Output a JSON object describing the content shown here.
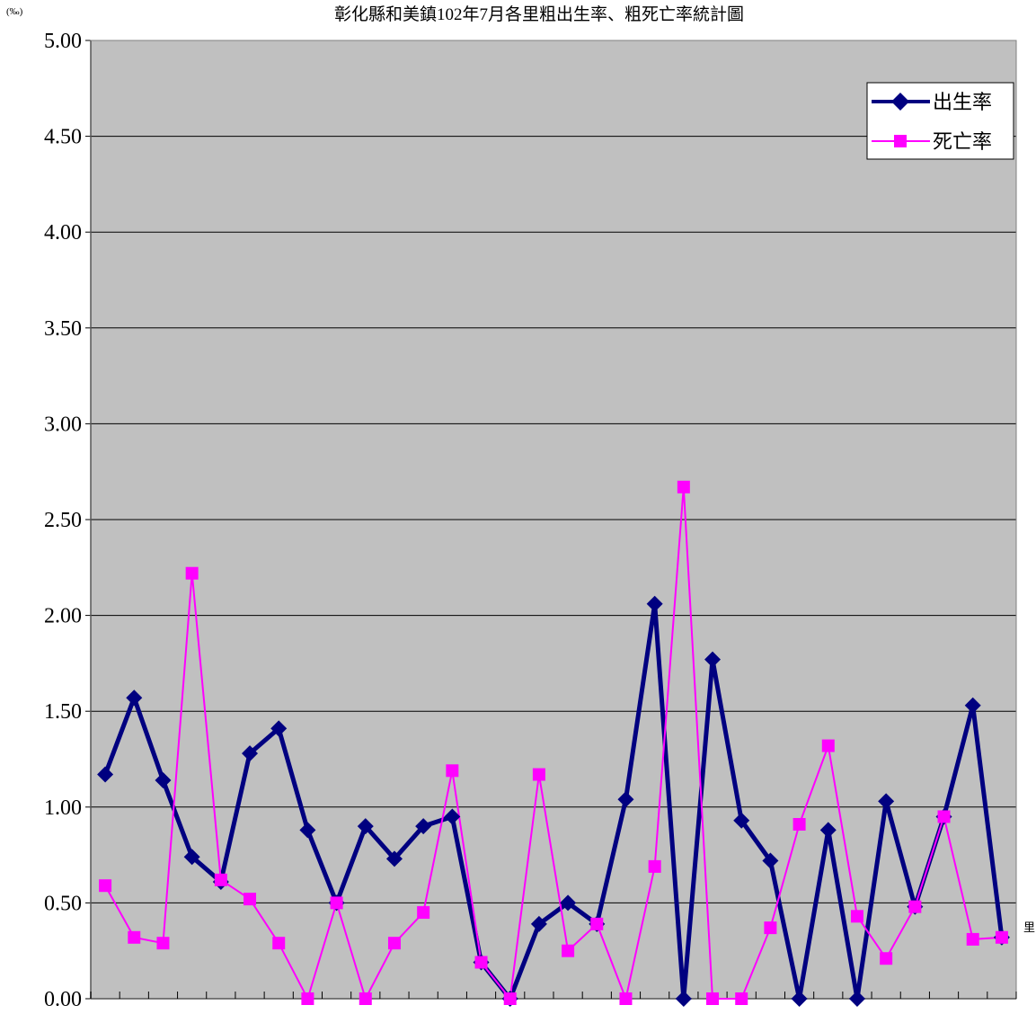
{
  "chart_data": {
    "type": "line",
    "title": "彰化縣和美鎮102年7月各里粗出生率、粗死亡率統計圖",
    "ylabel": "(‰)",
    "xlabel": "里",
    "ylim": [
      0,
      5
    ],
    "yticks": [
      "0.00",
      "0.50",
      "1.00",
      "1.50",
      "2.00",
      "2.50",
      "3.00",
      "3.50",
      "4.00",
      "4.50",
      "5.00"
    ],
    "grid": true,
    "legend_position": "top-right",
    "plot_background": "#C0C0C0",
    "series": [
      {
        "name": "出生率",
        "color": "#000080",
        "marker": "diamond",
        "values": [
          1.17,
          1.57,
          1.14,
          0.74,
          0.61,
          1.28,
          1.41,
          0.88,
          0.5,
          0.9,
          0.73,
          0.9,
          0.95,
          0.19,
          0.0,
          0.39,
          0.5,
          0.39,
          1.04,
          2.06,
          0.0,
          1.77,
          0.93,
          0.72,
          0.0,
          0.88,
          0.0,
          1.03,
          0.48,
          0.95,
          1.53,
          0.32
        ]
      },
      {
        "name": "死亡率",
        "color": "#FF00FF",
        "marker": "square",
        "values": [
          0.59,
          0.32,
          0.29,
          2.22,
          0.62,
          0.52,
          0.29,
          0.0,
          0.5,
          0.0,
          0.29,
          0.45,
          1.19,
          0.19,
          0.0,
          1.17,
          0.25,
          0.39,
          0.0,
          0.69,
          2.67,
          0.0,
          0.0,
          0.37,
          0.91,
          1.32,
          0.43,
          0.21,
          0.48,
          0.95,
          0.31,
          0.32
        ]
      }
    ]
  }
}
